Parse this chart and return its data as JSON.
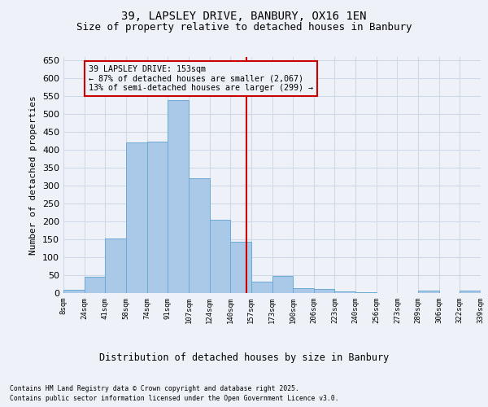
{
  "title": "39, LAPSLEY DRIVE, BANBURY, OX16 1EN",
  "subtitle": "Size of property relative to detached houses in Banbury",
  "xlabel": "Distribution of detached houses by size in Banbury",
  "ylabel": "Number of detached properties",
  "categories": [
    "8sqm",
    "24sqm",
    "41sqm",
    "58sqm",
    "74sqm",
    "91sqm",
    "107sqm",
    "124sqm",
    "140sqm",
    "157sqm",
    "173sqm",
    "190sqm",
    "206sqm",
    "223sqm",
    "240sqm",
    "256sqm",
    "273sqm",
    "289sqm",
    "306sqm",
    "322sqm",
    "339sqm"
  ],
  "values": [
    8,
    45,
    153,
    422,
    423,
    540,
    322,
    204,
    143,
    33,
    48,
    13,
    11,
    5,
    3,
    0,
    0,
    6,
    0,
    6
  ],
  "bar_color": "#aac8e8",
  "bar_edge_color": "#6aaad4",
  "grid_color": "#d0d8e8",
  "background_color": "#eef2f8",
  "vline_color": "#cc0000",
  "annotation_title": "39 LAPSLEY DRIVE: 153sqm",
  "annotation_line1": "← 87% of detached houses are smaller (2,067)",
  "annotation_line2": "13% of semi-detached houses are larger (299) →",
  "annotation_box_color": "#cc0000",
  "ylim": [
    0,
    660
  ],
  "yticks": [
    0,
    50,
    100,
    150,
    200,
    250,
    300,
    350,
    400,
    450,
    500,
    550,
    600,
    650
  ],
  "footnote1": "Contains HM Land Registry data © Crown copyright and database right 2025.",
  "footnote2": "Contains public sector information licensed under the Open Government Licence v3.0.",
  "title_fontsize": 10,
  "subtitle_fontsize": 9
}
